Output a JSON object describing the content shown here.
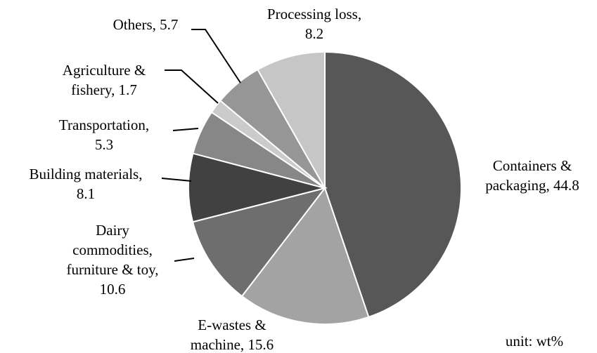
{
  "chart_data": {
    "type": "pie",
    "values": [
      44.8,
      15.6,
      10.6,
      8.1,
      5.3,
      1.7,
      5.7,
      8.2
    ],
    "value_labels": [
      [
        "Containers &",
        "packaging, 44.8"
      ],
      [
        "E-wastes &",
        "machine, 15.6"
      ],
      [
        "Dairy",
        "commodities,",
        "furniture & toy,",
        "10.6"
      ],
      [
        "Building materials,",
        "8.1"
      ],
      [
        "Transportation,",
        "5.3"
      ],
      [
        "Agriculture &",
        "fishery, 1.7"
      ],
      [
        "Others, 5.7"
      ],
      [
        "Processing loss,",
        "8.2"
      ]
    ],
    "colors": [
      "#575757",
      "#a3a3a3",
      "#6e6e6e",
      "#414141",
      "#878787",
      "#cbcbcb",
      "#969696",
      "#c6c6c6"
    ],
    "annotation": "unit: wt%"
  }
}
